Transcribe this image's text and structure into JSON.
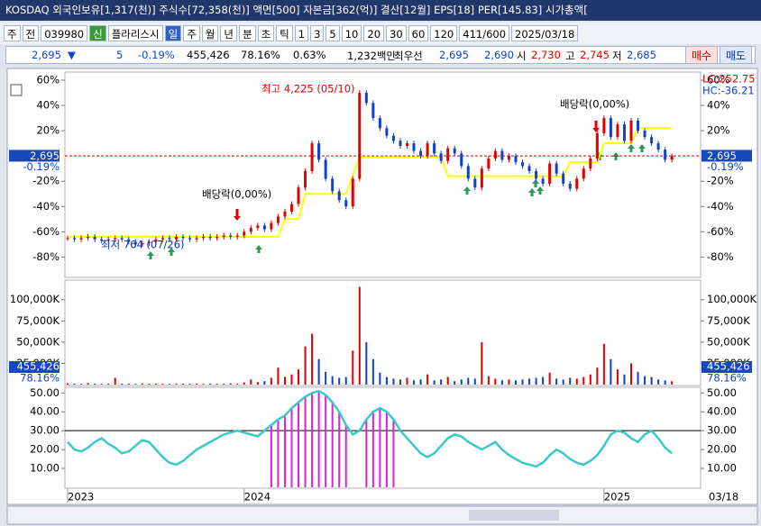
{
  "header": {
    "title": "KOSDAQ 외국인보유[1,317(천)] 주식수[72,358(천)] 액면[500] 자본금[362(억)] 결산[12월] EPS[18] PER[145.83] 시가총액["
  },
  "toolbar": {
    "items": [
      "주",
      "전",
      "039980",
      "신",
      "플라리스시",
      "일",
      "주",
      "월",
      "년",
      "분",
      "초",
      "틱",
      "1",
      "3",
      "5",
      "10",
      "20",
      "30",
      "60",
      "120",
      "411/600",
      "2025/03/18"
    ]
  },
  "quote": {
    "items": [
      {
        "text": "2,695",
        "color": "#1040d0"
      },
      {
        "text": "▼",
        "color": "#1040d0"
      },
      {
        "text": "5",
        "color": "#1040d0"
      },
      {
        "text": "-0.19%",
        "color": "#1040d0"
      },
      {
        "text": "455,426",
        "color": "#000000"
      },
      {
        "text": "78.16%",
        "color": "#000000"
      },
      {
        "text": "0.63%",
        "color": "#000000"
      },
      {
        "text": "1,232백만",
        "color": "#000000"
      },
      {
        "text": "최우선",
        "color": "#000000"
      },
      {
        "text": "2,695",
        "color": "#1040d0"
      },
      {
        "text": "2,690",
        "color": "#1040d0"
      },
      {
        "text": "시",
        "color": "#000000"
      },
      {
        "text": "2,730",
        "color": "#e00000"
      },
      {
        "text": "고",
        "color": "#000000"
      },
      {
        "text": "2,745",
        "color": "#e00000"
      },
      {
        "text": "저",
        "color": "#000000"
      },
      {
        "text": "2,685",
        "color": "#1040d0"
      }
    ],
    "buy": "매수",
    "sell": "매도"
  },
  "chart_data": [
    {
      "type": "candle",
      "categories": [
        "2023",
        null,
        null,
        null,
        null,
        null,
        null,
        null,
        null,
        null,
        null,
        null,
        null,
        null,
        null,
        null,
        null,
        null,
        null,
        null,
        null,
        null,
        null,
        null,
        null,
        null,
        "2024",
        null,
        null,
        null,
        null,
        null,
        null,
        null,
        null,
        null,
        null,
        null,
        null,
        null,
        null,
        null,
        null,
        null,
        null,
        null,
        null,
        null,
        null,
        null,
        null,
        null,
        null,
        null,
        null,
        null,
        null,
        null,
        null,
        null,
        null,
        null,
        null,
        null,
        null,
        null,
        null,
        null,
        null,
        null,
        null,
        null,
        null,
        null,
        null,
        null,
        null,
        null,
        null,
        "2025",
        null,
        null,
        null,
        null,
        null,
        null,
        null,
        null,
        null,
        null
      ],
      "last_date": "03/18",
      "values": [
        -65,
        -66,
        -65,
        -64,
        -66,
        -67,
        -66,
        -65,
        -66,
        -68,
        -70,
        -69,
        -68,
        -66,
        -65,
        -66,
        -64,
        -65,
        -66,
        -65,
        -64,
        -65,
        -64,
        -63,
        -64,
        -63,
        -60,
        -57,
        -55,
        -58,
        -53,
        -48,
        -44,
        -38,
        -25,
        -12,
        10,
        -3,
        -18,
        -28,
        -35,
        -40,
        -18,
        50,
        42,
        30,
        22,
        16,
        12,
        8,
        10,
        4,
        0,
        10,
        2,
        -4,
        6,
        2,
        -8,
        -18,
        -25,
        -10,
        -2,
        4,
        -3,
        0,
        -5,
        -8,
        -12,
        -18,
        -22,
        -6,
        -14,
        -22,
        -26,
        -18,
        -10,
        -2,
        18,
        30,
        15,
        25,
        12,
        28,
        20,
        15,
        10,
        5,
        -3,
        -0.19
      ],
      "ma_values": [
        -64,
        -64,
        -64,
        -64,
        -64,
        -64,
        -64,
        -64,
        -64,
        -64,
        -64,
        -64,
        -64,
        -64,
        -64,
        -64,
        -64,
        -64,
        -64,
        -64,
        -64,
        -64,
        -64,
        -64,
        -64,
        -64,
        -64,
        -64,
        -64,
        -64,
        -64,
        -64,
        -50,
        -50,
        -50,
        -30,
        -30,
        -30,
        -30,
        -30,
        -30,
        -30,
        -15,
        -1,
        -1,
        -1,
        -1,
        -1,
        -1,
        -1,
        -1,
        -1,
        -1,
        -1,
        -1,
        -1,
        -16,
        -16,
        -16,
        -16,
        -16,
        -16,
        -16,
        -16,
        -16,
        -16,
        -16,
        -16,
        -16,
        -16,
        -16,
        -16,
        -16,
        -16,
        -5,
        -5,
        -5,
        -5,
        -5,
        10,
        10,
        10,
        10,
        10,
        22,
        22,
        22,
        22,
        22,
        22
      ],
      "up_color": "#e00000",
      "down_color": "#1040d0",
      "ma_color": "#ffff00",
      "reference_line": 0,
      "ylim": [
        -94,
        65
      ],
      "yticks": [
        {
          "value": 60,
          "label": "60%"
        },
        {
          "value": 40,
          "label": "40%"
        },
        {
          "value": 20,
          "label": "20%"
        },
        {
          "value": -20,
          "label": "-20%"
        },
        {
          "value": -40,
          "label": "-40%"
        },
        {
          "value": -60,
          "label": "-60%"
        },
        {
          "value": -80,
          "label": "-80%"
        }
      ],
      "current_label": "2,695",
      "current_change": "-0.19%",
      "right_labels": [
        "LC:252.75",
        "HC:-36.21"
      ],
      "annotations": [
        "최고 4,225 (05/10)",
        "최저 764 (07/26)",
        "배당락(0,00%)",
        "배당락(0,00%)"
      ]
    },
    {
      "type": "volume",
      "values": [
        1500,
        1200,
        900,
        1800,
        1100,
        900,
        1300,
        8000,
        1200,
        1000,
        900,
        1500,
        1100,
        1300,
        1000,
        900,
        1200,
        1100,
        1000,
        1300,
        900,
        1200,
        1000,
        1100,
        1500,
        1200,
        2500,
        6000,
        3000,
        4000,
        8000,
        20000,
        9000,
        12000,
        18000,
        45000,
        60000,
        30000,
        15000,
        10000,
        8000,
        9000,
        40000,
        115000,
        50000,
        30000,
        14000,
        9000,
        7000,
        6000,
        8000,
        5000,
        6000,
        12000,
        5000,
        6000,
        9000,
        4000,
        6000,
        8000,
        7000,
        50000,
        10000,
        7000,
        5000,
        6000,
        5000,
        6000,
        7000,
        8000,
        9000,
        14000,
        7000,
        6000,
        8000,
        7000,
        9000,
        12000,
        20000,
        48000,
        30000,
        18000,
        12000,
        25000,
        15000,
        10000,
        9000,
        6000,
        5000,
        4000
      ],
      "ylim": [
        0,
        122000
      ],
      "yticks": [
        {
          "value": 100000,
          "label": "100,000K"
        },
        {
          "value": 75000,
          "label": "75,000K"
        },
        {
          "value": 50000,
          "label": "50,000K"
        },
        {
          "value": 25000,
          "label": "25,000K"
        }
      ],
      "current_label": "455,426",
      "current_ratio": "78.16%"
    },
    {
      "type": "indicator",
      "color": "#3cc8c8",
      "bar_color": "#e020e0",
      "reference_line": 30,
      "values": [
        24,
        20,
        19,
        21,
        24,
        26,
        23,
        21,
        18,
        19,
        22,
        25,
        24,
        20,
        16,
        13,
        12,
        14,
        17,
        20,
        22,
        24,
        26,
        28,
        29,
        30,
        29,
        28,
        27,
        30,
        33,
        36,
        38,
        42,
        45,
        48,
        50,
        51,
        49,
        45,
        40,
        33,
        28,
        30,
        36,
        40,
        42,
        40,
        36,
        30,
        26,
        22,
        18,
        16,
        18,
        22,
        26,
        28,
        27,
        24,
        22,
        20,
        22,
        24,
        20,
        17,
        15,
        13,
        12,
        11,
        13,
        17,
        20,
        18,
        15,
        13,
        12,
        14,
        17,
        22,
        28,
        30,
        29,
        26,
        24,
        28,
        30,
        26,
        21,
        18
      ],
      "ylim": [
        0,
        53
      ],
      "yticks": [
        {
          "value": 50,
          "label": "50.00"
        },
        {
          "value": 40,
          "label": "40.00"
        },
        {
          "value": 30,
          "label": "30.00"
        },
        {
          "value": 20,
          "label": "20.00"
        },
        {
          "value": 10,
          "label": "10.00"
        }
      ]
    }
  ]
}
